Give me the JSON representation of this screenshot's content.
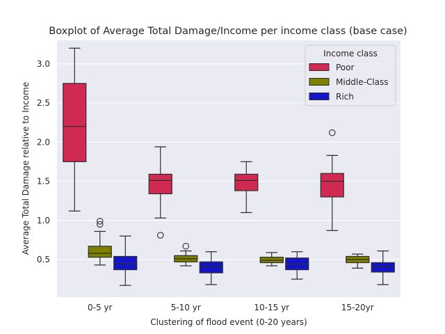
{
  "chart_data": {
    "type": "boxplot",
    "title": "Boxplot of Average Total Damage/Income per income class (base case)",
    "xlabel": "Clustering of flood event (0-20 years)",
    "ylabel": "Average Total Damage relative to Income",
    "categories": [
      "0-5 yr",
      "5-10 yr",
      "10-15 yr",
      "15-20yr"
    ],
    "ylim": [
      0.02,
      3.3
    ],
    "yticks": [
      0.5,
      1.0,
      1.5,
      2.0,
      2.5,
      3.0
    ],
    "grid": true,
    "legend": {
      "title": "Income class",
      "placement": "top-right"
    },
    "series": [
      {
        "name": "Poor",
        "color": "#d12a52",
        "boxes": [
          {
            "whislo": 1.12,
            "q1": 1.75,
            "med": 2.2,
            "q3": 2.75,
            "whishi": 3.2,
            "fliers": []
          },
          {
            "whislo": 1.03,
            "q1": 1.34,
            "med": 1.51,
            "q3": 1.59,
            "whishi": 1.94,
            "fliers": [
              0.81
            ]
          },
          {
            "whislo": 1.1,
            "q1": 1.38,
            "med": 1.51,
            "q3": 1.59,
            "whishi": 1.75,
            "fliers": []
          },
          {
            "whislo": 0.87,
            "q1": 1.3,
            "med": 1.5,
            "q3": 1.6,
            "whishi": 1.83,
            "fliers": [
              2.12
            ]
          }
        ]
      },
      {
        "name": "Middle-Class",
        "color": "#808000",
        "boxes": [
          {
            "whislo": 0.43,
            "q1": 0.53,
            "med": 0.58,
            "q3": 0.67,
            "whishi": 0.86,
            "fliers": [
              0.95,
              0.99
            ]
          },
          {
            "whislo": 0.42,
            "q1": 0.47,
            "med": 0.51,
            "q3": 0.55,
            "whishi": 0.61,
            "fliers": [
              0.67
            ]
          },
          {
            "whislo": 0.42,
            "q1": 0.46,
            "med": 0.49,
            "q3": 0.53,
            "whishi": 0.59,
            "fliers": []
          },
          {
            "whislo": 0.39,
            "q1": 0.46,
            "med": 0.5,
            "q3": 0.54,
            "whishi": 0.57,
            "fliers": []
          }
        ]
      },
      {
        "name": "Rich",
        "color": "#1515c8",
        "boxes": [
          {
            "whislo": 0.17,
            "q1": 0.37,
            "med": 0.45,
            "q3": 0.54,
            "whishi": 0.8,
            "fliers": []
          },
          {
            "whislo": 0.18,
            "q1": 0.33,
            "med": 0.41,
            "q3": 0.47,
            "whishi": 0.6,
            "fliers": []
          },
          {
            "whislo": 0.25,
            "q1": 0.37,
            "med": 0.44,
            "q3": 0.52,
            "whishi": 0.6,
            "fliers": []
          },
          {
            "whislo": 0.18,
            "q1": 0.34,
            "med": 0.41,
            "q3": 0.46,
            "whishi": 0.61,
            "fliers": []
          }
        ]
      }
    ]
  }
}
